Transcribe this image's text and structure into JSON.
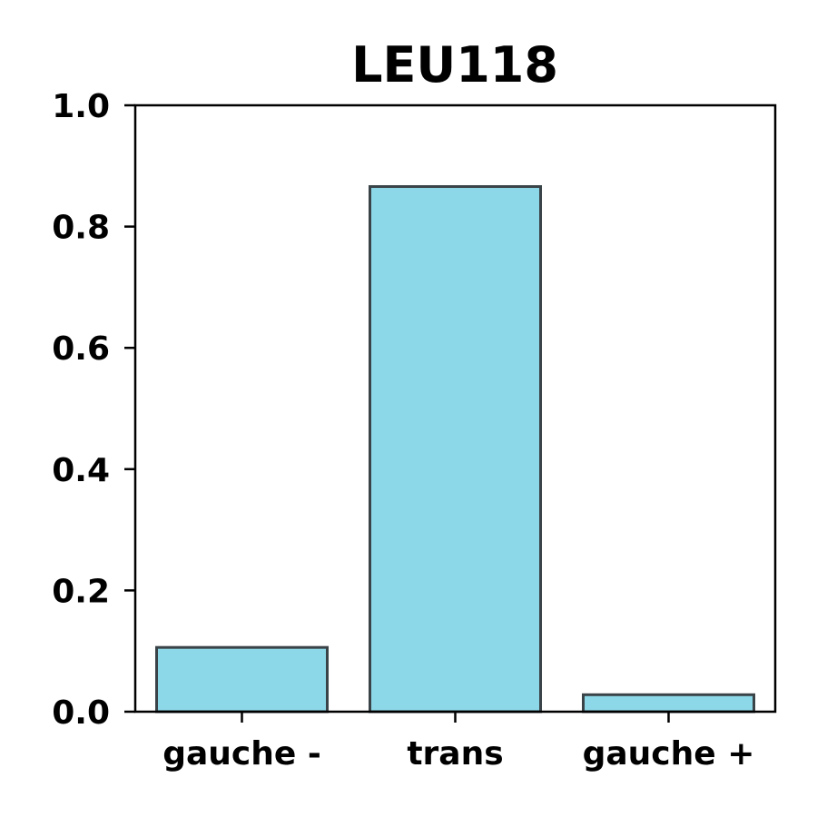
{
  "chart_data": {
    "type": "bar",
    "title": "LEU118",
    "xlabel": "",
    "ylabel": "",
    "categories": [
      "gauche -",
      "trans",
      "gauche +"
    ],
    "values": [
      0.106,
      0.866,
      0.028
    ],
    "ylim": [
      0,
      1.0
    ],
    "yticks": [
      "0.0",
      "0.2",
      "0.4",
      "0.6",
      "0.8",
      "1.0"
    ],
    "grid": false,
    "legend": "none",
    "colors": {
      "bar_fill": "#8dd8e8",
      "bar_edge": "#3a4448",
      "axis": "#000000",
      "background": "#ffffff"
    }
  }
}
